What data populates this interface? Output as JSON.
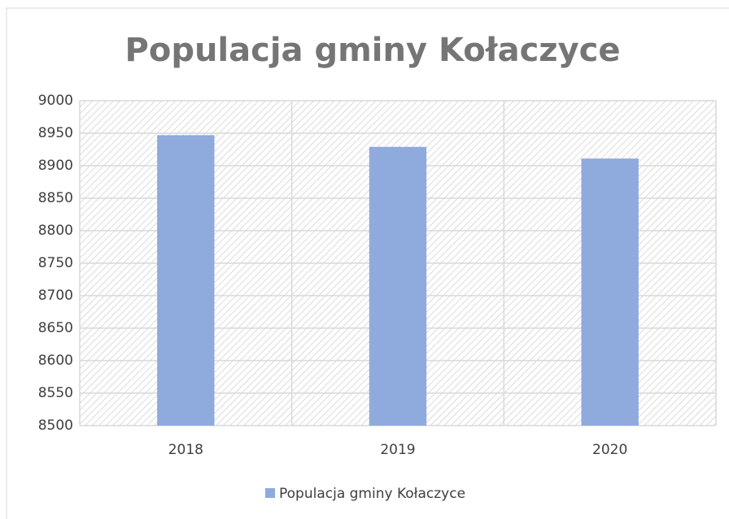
{
  "chart_data": {
    "type": "bar",
    "title": "Populacja gminy Kołaczyce",
    "categories": [
      "2018",
      "2019",
      "2020"
    ],
    "series": [
      {
        "name": "Populacja gminy Kołaczyce",
        "color": "#8faadc",
        "values": [
          8947,
          8929,
          8911
        ]
      }
    ],
    "ylim": [
      8500,
      9000
    ],
    "yticks": [
      8500,
      8550,
      8600,
      8650,
      8700,
      8750,
      8800,
      8850,
      8900,
      8950,
      9000
    ],
    "grid": true,
    "legend": "bottom"
  }
}
